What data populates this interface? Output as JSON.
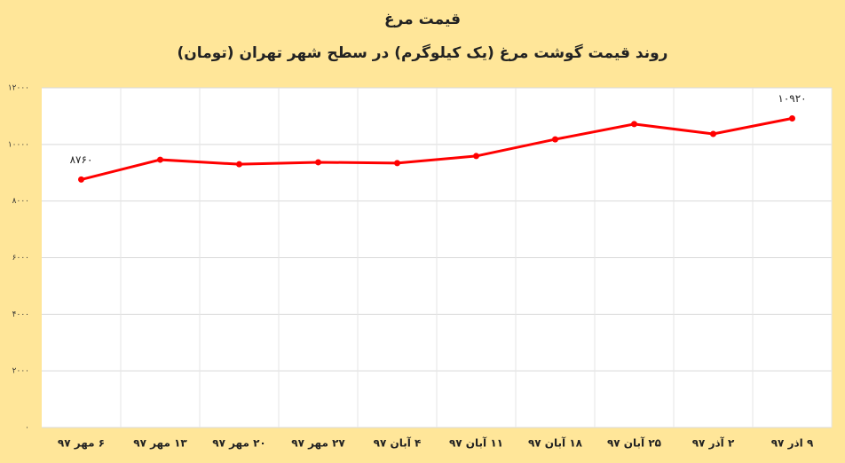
{
  "chart_data": {
    "type": "line",
    "title": "قیمت مرغ",
    "subtitle": "روند قیمت گوشت مرغ (یک کیلوگرم) در سطح شهر تهران (تومان)",
    "categories": [
      "۶ مهر ۹۷",
      "۱۳ مهر ۹۷",
      "۲۰ مهر ۹۷",
      "۲۷ مهر ۹۷",
      "۴ آبان ۹۷",
      "۱۱ آبان ۹۷",
      "۱۸ آبان ۹۷",
      "۲۵ آبان ۹۷",
      "۲ آذر ۹۷",
      "۹ اذر ۹۷"
    ],
    "series": [
      {
        "name": "قیمت مرغ",
        "color": "#ff0000",
        "values": [
          8760,
          9460,
          9300,
          9370,
          9340,
          9590,
          10180,
          10720,
          10370,
          10920
        ],
        "value_labels": [
          "۸۷۶۰",
          null,
          null,
          null,
          null,
          null,
          null,
          null,
          null,
          "۱۰۹۲۰"
        ]
      }
    ],
    "ylim": [
      0,
      12000
    ],
    "yticks": [
      {
        "value": 0,
        "label": "۰"
      },
      {
        "value": 2000,
        "label": "۲۰۰۰"
      },
      {
        "value": 4000,
        "label": "۴۰۰۰"
      },
      {
        "value": 6000,
        "label": "۶۰۰۰"
      },
      {
        "value": 8000,
        "label": "۸۰۰۰"
      },
      {
        "value": 10000,
        "label": "۱۰۰۰۰"
      },
      {
        "value": 12000,
        "label": "۱۲۰۰۰"
      }
    ],
    "grid": true
  }
}
